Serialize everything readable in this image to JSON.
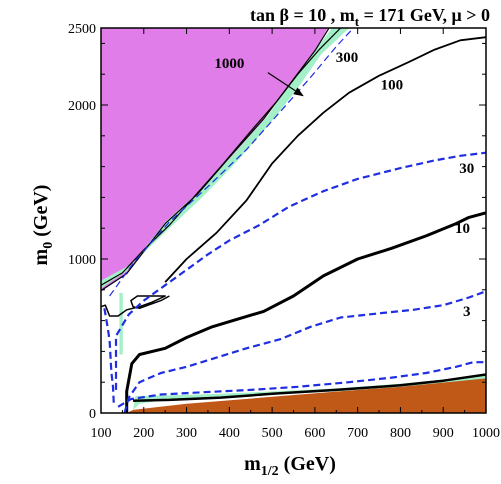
{
  "chart_data": {
    "type": "line",
    "title": "tan β = 10 , m_t = 171 GeV,  μ > 0",
    "title_parts": {
      "prefix": "tan β = 10 , m",
      "sub": "t",
      "suffix": " = 171 GeV,  μ > 0"
    },
    "xlabel": "m_1/2 (GeV)",
    "xlabel_parts": {
      "base": "m",
      "sub": "1/2",
      "suffix": " (GeV)"
    },
    "ylabel": "m_0 (GeV)",
    "ylabel_parts": {
      "base": "m",
      "sub": "0",
      "suffix": " (GeV)"
    },
    "xlim": [
      100,
      1000
    ],
    "ylim": [
      0,
      2500
    ],
    "x_ticks": [
      100,
      200,
      300,
      400,
      500,
      600,
      700,
      800,
      900,
      1000
    ],
    "y_ticks": [
      0,
      1000,
      2000,
      2500
    ],
    "grid": false,
    "colors": {
      "magenta_region": "#e07de8",
      "brown_region": "#c05818",
      "green_band": "#a3f0c8",
      "solid_contour": "#000000",
      "dashed_contour": "#1f2ee0"
    },
    "regions": [
      {
        "color": "#e07de8",
        "points": [
          [
            100,
            2500
          ],
          [
            100,
            790
          ],
          [
            160,
            900
          ],
          [
            250,
            1220
          ],
          [
            320,
            1400
          ],
          [
            400,
            1650
          ],
          [
            480,
            1900
          ],
          [
            545,
            2150
          ],
          [
            600,
            2350
          ],
          [
            630,
            2500
          ]
        ]
      },
      {
        "color": "#c05818",
        "points": [
          [
            160,
            0
          ],
          [
            175,
            20
          ],
          [
            300,
            60
          ],
          [
            500,
            105
          ],
          [
            700,
            150
          ],
          [
            900,
            200
          ],
          [
            1000,
            230
          ],
          [
            1000,
            0
          ]
        ]
      },
      {
        "color": "#a3f0c8",
        "points": [
          [
            100,
            810
          ],
          [
            160,
            920
          ],
          [
            250,
            1240
          ],
          [
            330,
            1440
          ],
          [
            410,
            1680
          ],
          [
            490,
            1930
          ],
          [
            550,
            2170
          ],
          [
            605,
            2370
          ],
          [
            640,
            2500
          ],
          [
            680,
            2500
          ],
          [
            615,
            2330
          ],
          [
            555,
            2090
          ],
          [
            495,
            1880
          ],
          [
            420,
            1640
          ],
          [
            340,
            1410
          ],
          [
            260,
            1200
          ],
          [
            200,
            1040
          ],
          [
            160,
            950
          ],
          [
            100,
            860
          ]
        ]
      },
      {
        "color": "#a3f0c8",
        "points": [
          [
            180,
            110
          ],
          [
            260,
            115
          ],
          [
            380,
            125
          ],
          [
            500,
            140
          ],
          [
            650,
            160
          ],
          [
            800,
            190
          ],
          [
            1000,
            245
          ],
          [
            1000,
            225
          ],
          [
            800,
            170
          ],
          [
            650,
            140
          ],
          [
            500,
            120
          ],
          [
            380,
            105
          ],
          [
            260,
            90
          ],
          [
            190,
            60
          ],
          [
            175,
            20
          ]
        ]
      },
      {
        "color": "#a3f0c8",
        "points": [
          [
            143,
            780
          ],
          [
            151,
            780
          ],
          [
            151,
            380
          ],
          [
            143,
            380
          ]
        ]
      }
    ],
    "series": [
      {
        "name": "1000",
        "style": "solid",
        "width": 1.2,
        "points": [
          [
            100,
            795
          ],
          [
            160,
            905
          ],
          [
            250,
            1230
          ],
          [
            325,
            1420
          ],
          [
            400,
            1660
          ],
          [
            480,
            1910
          ],
          [
            548,
            2160
          ],
          [
            602,
            2360
          ],
          [
            633,
            2500
          ]
        ]
      },
      {
        "name": "",
        "style": "solid",
        "width": 1.2,
        "points": [
          [
            100,
            830
          ],
          [
            150,
            910
          ],
          [
            200,
            1060
          ],
          [
            260,
            1220
          ],
          [
            310,
            1380
          ],
          [
            380,
            1600
          ],
          [
            450,
            1830
          ],
          [
            510,
            2020
          ],
          [
            560,
            2200
          ],
          [
            610,
            2360
          ],
          [
            660,
            2500
          ]
        ]
      },
      {
        "name": "300",
        "style": "dashed",
        "width": 1.2,
        "points": [
          [
            120,
            760
          ],
          [
            180,
            990
          ],
          [
            260,
            1240
          ],
          [
            350,
            1470
          ],
          [
            440,
            1710
          ],
          [
            520,
            1960
          ],
          [
            590,
            2180
          ],
          [
            650,
            2380
          ],
          [
            690,
            2500
          ]
        ]
      },
      {
        "name": "100",
        "style": "solid",
        "width": 1.8,
        "points": [
          [
            250,
            850
          ],
          [
            300,
            1000
          ],
          [
            370,
            1170
          ],
          [
            440,
            1380
          ],
          [
            500,
            1620
          ],
          [
            560,
            1800
          ],
          [
            620,
            1950
          ],
          [
            680,
            2080
          ],
          [
            750,
            2190
          ],
          [
            820,
            2280
          ],
          [
            880,
            2360
          ],
          [
            940,
            2420
          ],
          [
            1000,
            2440
          ]
        ]
      },
      {
        "name": "",
        "style": "solid",
        "width": 1.5,
        "points": [
          [
            100,
            690
          ],
          [
            110,
            700
          ],
          [
            120,
            630
          ],
          [
            140,
            630
          ],
          [
            160,
            670
          ],
          [
            190,
            690
          ],
          [
            220,
            720
          ],
          [
            250,
            760
          ],
          [
            225,
            760
          ],
          [
            185,
            760
          ],
          [
            170,
            730
          ],
          [
            175,
            690
          ],
          [
            190,
            680
          ],
          [
            210,
            700
          ],
          [
            240,
            730
          ],
          [
            260,
            760
          ]
        ]
      },
      {
        "name": "30",
        "style": "dashed",
        "width": 2.2,
        "points": [
          [
            135,
            150
          ],
          [
            135,
            500
          ],
          [
            165,
            640
          ],
          [
            200,
            730
          ],
          [
            250,
            830
          ],
          [
            300,
            930
          ],
          [
            350,
            1030
          ],
          [
            400,
            1120
          ],
          [
            470,
            1220
          ],
          [
            540,
            1340
          ],
          [
            620,
            1440
          ],
          [
            700,
            1520
          ],
          [
            800,
            1590
          ],
          [
            880,
            1640
          ],
          [
            940,
            1670
          ],
          [
            1000,
            1690
          ]
        ]
      },
      {
        "name": "10",
        "style": "solid",
        "width": 3,
        "points": [
          [
            160,
            0
          ],
          [
            160,
            140
          ],
          [
            172,
            320
          ],
          [
            190,
            380
          ],
          [
            250,
            420
          ],
          [
            300,
            490
          ],
          [
            360,
            560
          ],
          [
            420,
            610
          ],
          [
            480,
            660
          ],
          [
            550,
            760
          ],
          [
            620,
            890
          ],
          [
            700,
            1000
          ],
          [
            780,
            1070
          ],
          [
            860,
            1150
          ],
          [
            930,
            1230
          ],
          [
            960,
            1270
          ],
          [
            1000,
            1300
          ]
        ]
      },
      {
        "name": "3",
        "style": "dashed",
        "width": 2.2,
        "points": [
          [
            155,
            0
          ],
          [
            165,
            100
          ],
          [
            190,
            200
          ],
          [
            240,
            260
          ],
          [
            300,
            300
          ],
          [
            370,
            360
          ],
          [
            440,
            420
          ],
          [
            520,
            480
          ],
          [
            590,
            560
          ],
          [
            660,
            620
          ],
          [
            760,
            650
          ],
          [
            830,
            670
          ],
          [
            900,
            700
          ],
          [
            960,
            750
          ],
          [
            1000,
            790
          ]
        ]
      },
      {
        "name": "",
        "style": "dashed",
        "width": 2.2,
        "points": [
          [
            108,
            680
          ],
          [
            116,
            550
          ],
          [
            120,
            470
          ],
          [
            122,
            380
          ],
          [
            124,
            270
          ],
          [
            128,
            170
          ],
          [
            130,
            60
          ]
        ]
      },
      {
        "name": "",
        "style": "dashed",
        "width": 2.2,
        "points": [
          [
            140,
            40
          ],
          [
            170,
            90
          ],
          [
            240,
            120
          ],
          [
            340,
            135
          ],
          [
            450,
            150
          ],
          [
            560,
            170
          ],
          [
            680,
            200
          ],
          [
            780,
            230
          ],
          [
            860,
            260
          ],
          [
            930,
            300
          ],
          [
            970,
            330
          ],
          [
            1000,
            330
          ]
        ]
      },
      {
        "name": "",
        "style": "solid",
        "width": 2.5,
        "points": [
          [
            175,
            80
          ],
          [
            260,
            85
          ],
          [
            380,
            100
          ],
          [
            500,
            125
          ],
          [
            650,
            150
          ],
          [
            800,
            180
          ],
          [
            900,
            210
          ],
          [
            1000,
            250
          ]
        ]
      }
    ],
    "annotations": [
      {
        "text": "1000",
        "x": 400,
        "y": 2240
      },
      {
        "text": "300",
        "x": 675,
        "y": 2280
      },
      {
        "text": "100",
        "x": 780,
        "y": 2100
      },
      {
        "text": "30",
        "x": 955,
        "y": 1560
      },
      {
        "text": "10",
        "x": 945,
        "y": 1170
      },
      {
        "text": "3",
        "x": 955,
        "y": 630
      }
    ],
    "arrow": {
      "from": [
        490,
        2210
      ],
      "to": [
        572,
        2060
      ]
    }
  }
}
